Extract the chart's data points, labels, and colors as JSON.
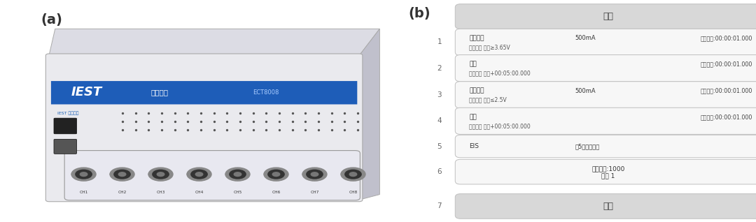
{
  "label_a": "(a)",
  "label_b": "(b)",
  "bg_color": "#ffffff",
  "panel_b": {
    "start_box": {
      "text": "开始",
      "bg": "#d4d4d4",
      "text_color": "#444444"
    },
    "end_box": {
      "text": "停止",
      "bg": "#d4d4d4",
      "text_color": "#444444"
    },
    "steps": [
      {
        "num": "1",
        "line1": "恒流充电",
        "line1_mid": "500mA",
        "line1_right": "记录条件:00:00:01.000",
        "line2": "结束条件 电压≥3.65V",
        "has_two_lines": true
      },
      {
        "num": "2",
        "line1": "静置",
        "line1_mid": "",
        "line1_right": "记录条件:00:00:01.000",
        "line2": "结束条件 时间+00:05:00.000",
        "has_two_lines": true
      },
      {
        "num": "3",
        "line1": "恒流放电",
        "line1_mid": "500mA",
        "line1_right": "记录条件:00:00:01.000",
        "line2": "结束条件 电压≤2.5V",
        "has_two_lines": true
      },
      {
        "num": "4",
        "line1": "静置",
        "line1_mid": "",
        "line1_right": "记录条件:00:00:01.000",
        "line2": "结束条件 时间+00:05:00.000",
        "has_two_lines": true
      },
      {
        "num": "5",
        "line1": "EIS",
        "line1_mid": "每5圈测试一次",
        "line1_right": "",
        "line2": "",
        "has_two_lines": false
      }
    ],
    "loop_box": {
      "line1": "循环次数:1000",
      "line2": "步骤 1",
      "num": "6"
    }
  },
  "device": {
    "body_color": "#eaeaee",
    "body_edge": "#aaaaaa",
    "top_color": "#dcdce4",
    "side_color": "#c0c0cc",
    "stripe_color": "#1e5db8",
    "stripe_text_color": "#ffffff",
    "brand": "IEST",
    "brand_cn": "元能科技",
    "model": "ECT8008",
    "ch_labels": [
      "CH1",
      "CH2",
      "CH3",
      "CH4",
      "CH5",
      "CH6",
      "CH7",
      "CH8"
    ],
    "dot_color": "#555555",
    "btn_color": "#222222",
    "connector_outer": "#888888",
    "connector_inner": "#333333",
    "connector_core": "#777777"
  }
}
